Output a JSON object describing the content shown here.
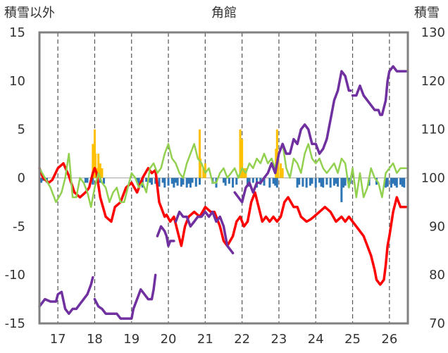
{
  "chart_data": {
    "type": "line",
    "title": "角館",
    "y_left_label": "積雪以外",
    "y_right_label": "積雪",
    "x_ticks": [
      "17",
      "18",
      "19",
      "20",
      "21",
      "22",
      "23",
      "24",
      "25",
      "26"
    ],
    "y_left_ticks": [
      "15",
      "10",
      "5",
      "0",
      "-5",
      "-10",
      "-15"
    ],
    "y_right_ticks": [
      "130",
      "120",
      "110",
      "100",
      "90",
      "80",
      "70"
    ],
    "x_range": [
      16.5,
      26.5
    ],
    "y_left_range": [
      -15,
      15
    ],
    "y_right_range": [
      70,
      130
    ],
    "grid": "vertical dashed at each day",
    "colors": {
      "temperature": "#ff0000",
      "snow_depth": "#7030a0",
      "other": "#92d050",
      "precipitation": "#ffc000",
      "sunshine": "#2e75b6",
      "frame": "#808080"
    },
    "series": [
      {
        "key": "temperature",
        "axis": "left",
        "color": "#ff0000",
        "x": [
          16.5,
          16.6,
          16.75,
          16.85,
          17.0,
          17.15,
          17.3,
          17.45,
          17.6,
          17.75,
          17.85,
          17.95,
          18.0,
          18.05,
          18.15,
          18.3,
          18.45,
          18.55,
          18.7,
          18.85,
          19.0,
          19.15,
          19.3,
          19.45,
          19.55,
          19.65,
          19.75,
          19.85,
          19.9,
          19.95,
          20.05,
          20.15,
          20.25,
          20.35,
          20.45,
          20.55,
          20.7,
          20.85,
          21.0,
          21.15,
          21.25,
          21.4,
          21.5,
          21.6,
          21.75,
          21.85,
          21.95,
          22.05,
          22.15,
          22.25,
          22.35,
          22.45,
          22.55,
          22.65,
          22.75,
          22.85,
          22.95,
          23.05,
          23.15,
          23.25,
          23.4,
          23.5,
          23.6,
          23.75,
          23.85,
          23.95,
          24.1,
          24.25,
          24.4,
          24.55,
          24.7,
          24.8,
          24.9,
          25.0,
          25.1,
          25.2,
          25.3,
          25.4,
          25.5,
          25.6,
          25.65,
          25.75,
          25.85,
          25.9,
          25.95,
          26.0,
          26.1,
          26.2,
          26.3,
          26.45
        ],
        "y": [
          1.0,
          0.0,
          -0.5,
          -0.2,
          1.0,
          1.5,
          0.2,
          -1.5,
          -2.0,
          -1.5,
          -1.0,
          0.5,
          1.0,
          0.5,
          -2.0,
          -4.0,
          -4.5,
          -3.0,
          -2.5,
          -1.0,
          -0.5,
          -1.5,
          0.0,
          1.0,
          0.5,
          0.8,
          -2.5,
          -3.5,
          -4.0,
          -3.8,
          -4.5,
          -4.0,
          -5.5,
          -7.0,
          -5.0,
          -4.0,
          -3.5,
          -4.0,
          -3.0,
          -3.5,
          -3.5,
          -5.0,
          -6.5,
          -7.0,
          -6.0,
          -4.5,
          -4.0,
          -5.0,
          -4.5,
          -2.5,
          -1.5,
          -3.0,
          -4.5,
          -4.0,
          -4.5,
          -4.0,
          -4.5,
          -4.0,
          -2.5,
          -2.0,
          -3.0,
          -3.0,
          -4.0,
          -4.5,
          -4.3,
          -4.0,
          -3.5,
          -3.0,
          -3.5,
          -4.5,
          -4.0,
          -4.5,
          -4.0,
          -4.5,
          -5.0,
          -5.5,
          -6.0,
          -7.0,
          -8.0,
          -9.5,
          -10.5,
          -11.0,
          -10.5,
          -9.0,
          -7.0,
          -6.0,
          -3.5,
          -2.0,
          -3.0,
          -3.0
        ]
      },
      {
        "key": "other",
        "axis": "left",
        "color": "#92d050",
        "x": [
          16.5,
          16.65,
          16.8,
          16.95,
          17.1,
          17.2,
          17.3,
          17.4,
          17.5,
          17.6,
          17.7,
          17.8,
          17.9,
          18.0,
          18.1,
          18.2,
          18.3,
          18.4,
          18.5,
          18.6,
          18.7,
          18.8,
          18.9,
          19.0,
          19.1,
          19.2,
          19.3,
          19.4,
          19.5,
          19.6,
          19.7,
          19.8,
          19.9,
          20.0,
          20.1,
          20.2,
          20.3,
          20.4,
          20.5,
          20.6,
          20.7,
          20.8,
          20.9,
          21.0,
          21.1,
          21.2,
          21.3,
          21.4,
          21.5,
          21.6,
          21.7,
          21.8,
          21.9,
          22.0,
          22.1,
          22.2,
          22.3,
          22.4,
          22.5,
          22.6,
          22.7,
          22.8,
          22.9,
          23.0,
          23.1,
          23.2,
          23.3,
          23.4,
          23.5,
          23.6,
          23.7,
          23.8,
          23.9,
          24.0,
          24.1,
          24.2,
          24.3,
          24.4,
          24.5,
          24.6,
          24.7,
          24.8,
          24.9,
          25.0,
          25.1,
          25.2,
          25.3,
          25.4,
          25.5,
          25.6,
          25.7,
          25.8,
          25.9,
          26.0,
          26.1,
          26.2,
          26.3,
          26.45
        ],
        "y": [
          1.0,
          0.0,
          -1.0,
          -2.5,
          -1.5,
          0.0,
          2.5,
          -2.0,
          -2.0,
          0.0,
          -0.5,
          -1.5,
          -3.0,
          -1.0,
          0.5,
          -0.5,
          -1.0,
          -2.5,
          -1.5,
          -1.0,
          -2.5,
          -2.5,
          -1.0,
          0.5,
          0.0,
          -1.0,
          -0.5,
          -1.5,
          1.0,
          1.5,
          0.5,
          1.0,
          2.5,
          3.5,
          2.0,
          1.5,
          0.5,
          0.0,
          1.5,
          2.5,
          3.5,
          2.0,
          1.5,
          0.5,
          1.0,
          -0.5,
          -0.5,
          0.5,
          1.0,
          0.0,
          0.5,
          1.0,
          0.0,
          1.0,
          0.5,
          1.5,
          1.0,
          2.0,
          1.5,
          2.5,
          1.5,
          2.0,
          1.0,
          2.5,
          3.5,
          1.0,
          0.0,
          2.0,
          1.5,
          0.5,
          2.5,
          3.5,
          2.0,
          1.5,
          2.0,
          1.0,
          0.5,
          1.0,
          1.5,
          0.5,
          2.0,
          1.5,
          -1.0,
          1.0,
          -2.0,
          0.5,
          -2.0,
          -1.0,
          1.0,
          0.0,
          -0.5,
          -2.0,
          0.5,
          1.0,
          1.5,
          0.5,
          1.0,
          1.0
        ]
      },
      {
        "key": "snow_depth",
        "axis": "right",
        "color": "#7030a0",
        "segments": [
          {
            "x": [
              16.5,
              16.65,
              16.8,
              16.95,
              17.0,
              17.1,
              17.2,
              17.3,
              17.4,
              17.5,
              17.6,
              17.7,
              17.8,
              17.9,
              17.95
            ],
            "y": [
              73.5,
              75,
              74.5,
              74.5,
              76,
              76.5,
              73,
              72,
              73,
              73,
              74,
              75,
              76,
              78,
              79.5
            ]
          },
          {
            "x": [
              18.0,
              18.1,
              18.2,
              18.3,
              18.5,
              18.6,
              18.7,
              18.8,
              19.0,
              19.05,
              19.15,
              19.25,
              19.35,
              19.45,
              19.55,
              19.6,
              19.65
            ],
            "y": [
              75,
              73.5,
              73,
              72,
              72,
              72,
              71,
              71,
              71,
              73,
              75,
              77,
              76,
              75,
              75,
              77,
              80
            ]
          },
          {
            "x": [
              19.7,
              19.8,
              19.9,
              19.95,
              20.0,
              20.05,
              20.15
            ],
            "y": [
              88,
              90,
              89,
              88,
              86,
              87,
              87
            ]
          },
          {
            "x": [
              20.2,
              20.3,
              20.4,
              20.5,
              20.6,
              20.7,
              20.8,
              20.9,
              21.0,
              21.1,
              21.2,
              21.3,
              21.4,
              21.5,
              21.6,
              21.75
            ],
            "y": [
              91,
              93,
              92,
              92,
              90,
              91,
              92,
              92,
              93,
              92,
              93,
              91,
              92,
              90,
              86,
              84.5
            ]
          },
          {
            "x": [
              21.8,
              21.9,
              22.0,
              22.1,
              22.2,
              22.3,
              22.4,
              22.5,
              22.6,
              22.7,
              22.8,
              22.9,
              23.0,
              23.1,
              23.2,
              23.3,
              23.4,
              23.5,
              23.6,
              23.7,
              23.8,
              23.9,
              24.0,
              24.1,
              24.2,
              24.3,
              24.4,
              24.5,
              24.6,
              24.7,
              24.8,
              24.9,
              24.95
            ],
            "y": [
              97,
              96,
              95,
              98,
              99,
              97,
              99,
              99,
              100,
              101,
              103,
              101,
              105,
              107,
              105,
              105,
              108,
              107,
              110,
              111,
              110,
              107,
              107,
              105,
              106,
              108,
              112,
              116,
              118,
              122,
              121,
              118,
              118
            ]
          },
          {
            "x": [
              25.0,
              25.1,
              25.2,
              25.3,
              25.4,
              25.5,
              25.6,
              25.7,
              25.75,
              25.8,
              25.9,
              25.95,
              26.0,
              26.1,
              26.2,
              26.3,
              26.45
            ],
            "y": [
              117,
              117,
              119,
              117,
              116,
              115,
              114,
              114,
              113,
              113,
              116,
              120,
              122,
              123,
              122,
              122,
              122
            ]
          }
        ]
      }
    ],
    "bars": [
      {
        "key": "precipitation",
        "axis": "left",
        "color": "#ffc000",
        "x": [
          17.95,
          17.97,
          18.0,
          18.02,
          18.05,
          18.1,
          18.15,
          18.2,
          20.85,
          20.87,
          20.95,
          21.0,
          21.95,
          21.97,
          22.0,
          22.05,
          22.1,
          22.92,
          22.95,
          22.98,
          23.05,
          23.1
        ],
        "y": [
          3.5,
          1.5,
          5.0,
          2.5,
          1.0,
          2.5,
          1.5,
          1.0,
          5.0,
          2.0,
          1.0,
          1.5,
          5.0,
          3.5,
          4.0,
          1.0,
          1.0,
          3.0,
          5.0,
          2.0,
          1.5,
          1.0
        ]
      },
      {
        "key": "sunshine",
        "axis": "left",
        "color": "#2e75b6",
        "x": [
          16.55,
          16.6,
          16.7,
          17.75,
          17.8,
          17.95,
          18.15,
          18.25,
          19.15,
          19.2,
          19.3,
          19.4,
          19.5,
          19.55,
          19.65,
          19.75,
          19.85,
          19.9,
          20.0,
          20.1,
          20.15,
          20.2,
          20.25,
          20.35,
          20.4,
          20.5,
          20.55,
          20.6,
          20.65,
          20.75,
          20.85,
          21.2,
          21.3,
          21.5,
          21.55,
          21.65,
          21.75,
          21.85,
          22.15,
          22.2,
          22.3,
          22.4,
          22.5,
          22.6,
          22.75,
          22.85,
          22.9,
          22.95,
          23.5,
          23.55,
          23.65,
          23.75,
          23.85,
          23.9,
          24.0,
          24.1,
          24.15,
          24.2,
          24.3,
          24.4,
          24.5,
          24.55,
          24.6,
          24.7,
          24.75,
          24.8,
          24.9,
          24.95,
          25.45,
          25.65,
          25.9,
          25.95,
          26.05,
          26.1,
          26.15,
          26.2,
          26.3,
          26.35,
          26.4,
          26.5
        ],
        "y": [
          -0.5,
          -0.3,
          -0.5,
          -0.5,
          -0.5,
          -0.7,
          -0.5,
          -0.6,
          -0.5,
          -0.8,
          -1.0,
          -0.4,
          -0.5,
          -0.7,
          -0.6,
          -0.9,
          -0.5,
          -1.0,
          -0.8,
          -0.6,
          -1.0,
          -0.5,
          -0.8,
          -0.9,
          -0.7,
          -1.0,
          -0.6,
          -1.0,
          -0.5,
          -0.9,
          -0.7,
          -0.6,
          -1.0,
          -0.5,
          -0.8,
          -0.6,
          -1.0,
          -0.7,
          -0.8,
          -0.9,
          -0.5,
          -1.0,
          -0.7,
          -0.8,
          -1.0,
          -0.6,
          -0.8,
          -1.0,
          -1.0,
          -0.7,
          -0.9,
          -1.0,
          -0.8,
          -0.6,
          -1.0,
          -0.5,
          -0.9,
          -1.0,
          -0.7,
          -1.0,
          -0.8,
          -0.6,
          -0.9,
          -2.5,
          -1.0,
          -0.8,
          -1.0,
          -0.6,
          -0.8,
          -0.7,
          -1.0,
          -0.9,
          -1.0,
          -0.6,
          -0.8,
          -1.0,
          -0.7,
          -0.9,
          -1.0,
          -0.8
        ]
      }
    ]
  }
}
